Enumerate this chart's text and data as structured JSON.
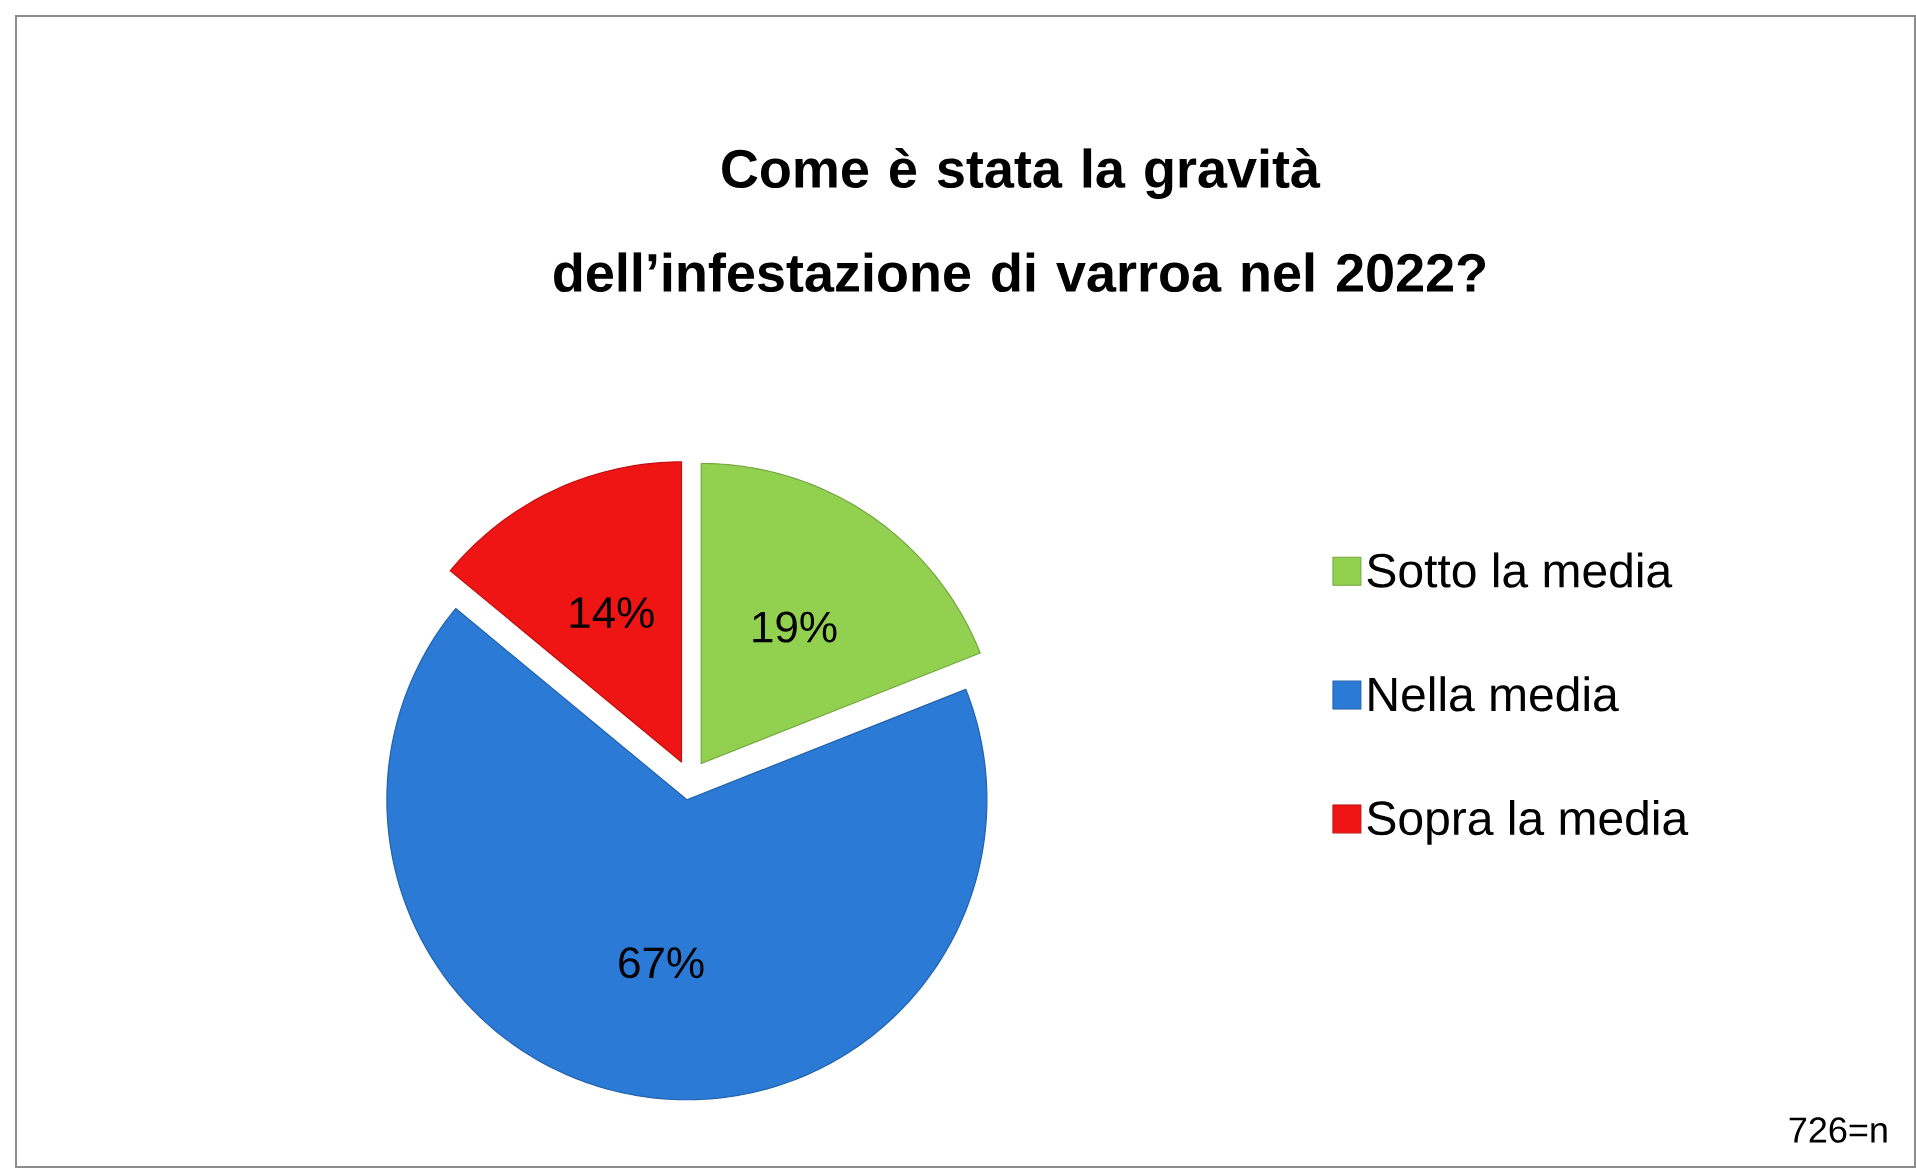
{
  "chart_data": {
    "type": "pie",
    "title": "Come è stata la gravità dell’infestazione di varroa nel 2022?",
    "categories": [
      "Sotto la media",
      "Nella media",
      "Sopra la media"
    ],
    "values": [
      19,
      67,
      14
    ],
    "value_labels": [
      "19%",
      "67%",
      "14%"
    ],
    "colors": [
      "#92d050",
      "#2a7ad6",
      "#f01515"
    ],
    "legend": "right",
    "annotations": [
      "726=n"
    ]
  }
}
